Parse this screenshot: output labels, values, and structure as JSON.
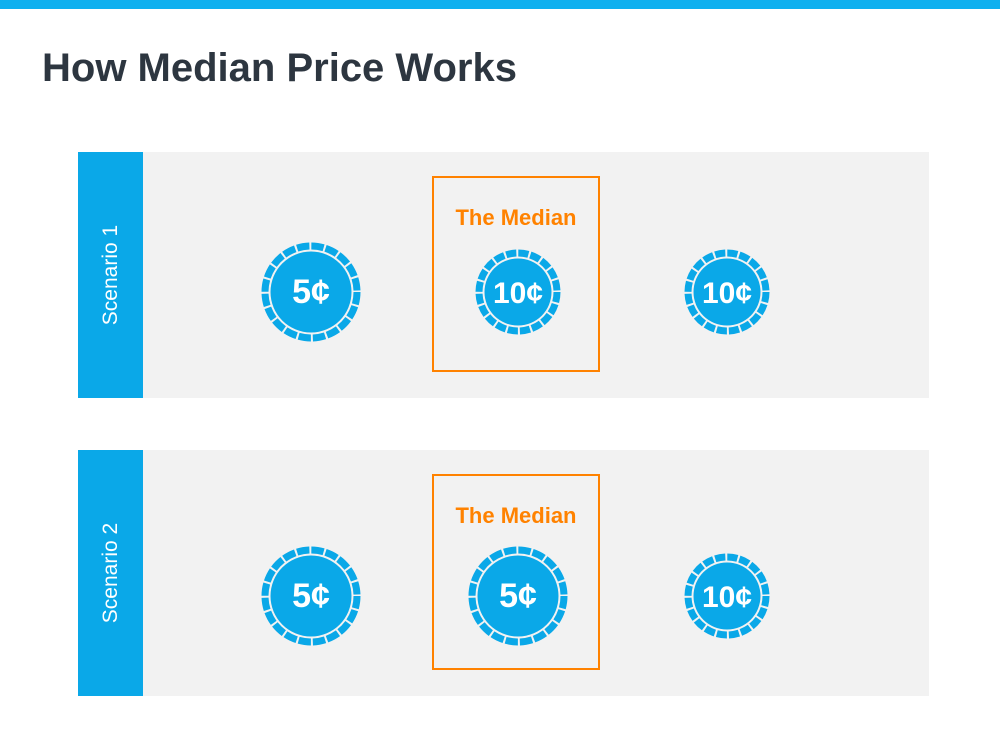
{
  "title": "How Median Price Works",
  "colors": {
    "accent": "#0aa8e8",
    "median": "#ff8200",
    "panel": "#f2f2f2",
    "title": "#2d3640"
  },
  "scenarios": [
    {
      "label": "Scenario 1",
      "median_label": "The Median",
      "coins": [
        "5¢",
        "10¢",
        "10¢"
      ],
      "median_index": 1
    },
    {
      "label": "Scenario 2",
      "median_label": "The Median",
      "coins": [
        "5¢",
        "5¢",
        "10¢"
      ],
      "median_index": 1
    }
  ]
}
